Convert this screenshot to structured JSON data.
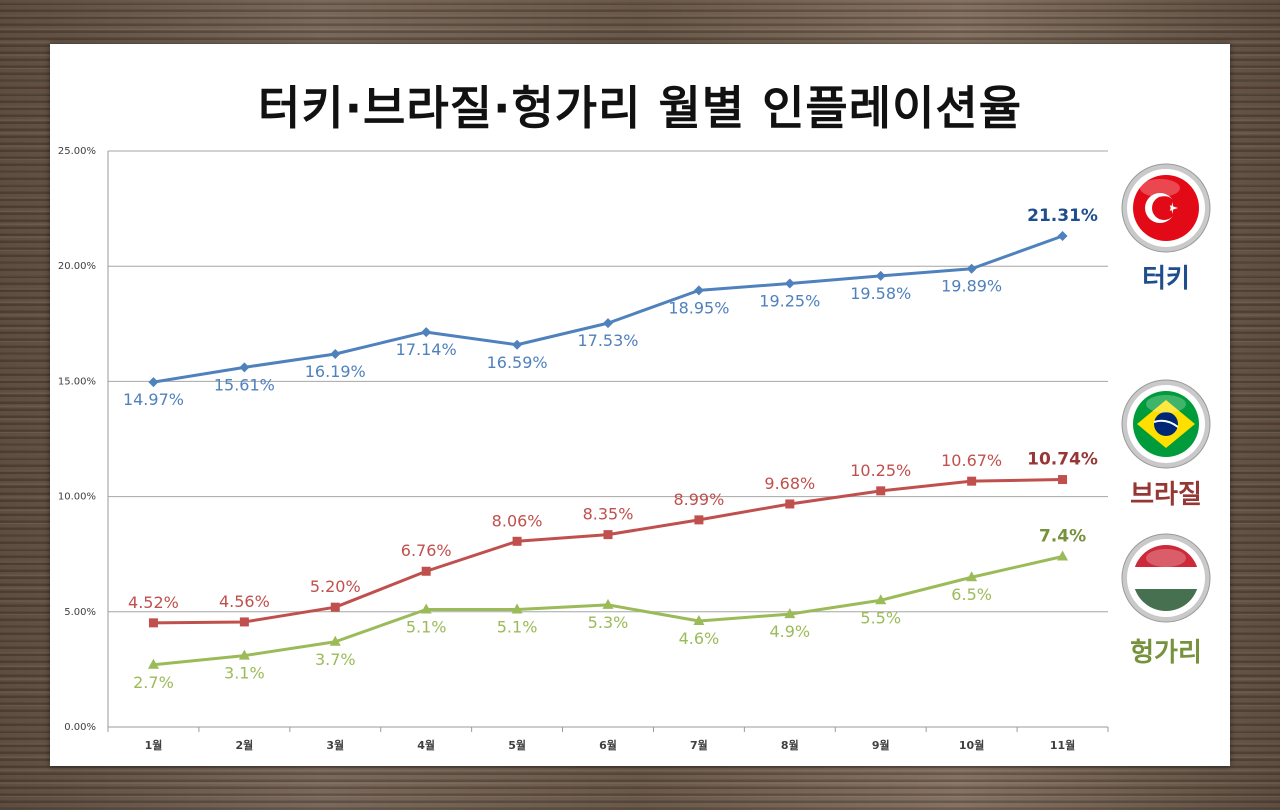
{
  "chart_data": {
    "type": "line",
    "title": "터키·브라질·헝가리 월별 인플레이션율",
    "xlabel": "",
    "ylabel": "",
    "categories": [
      "1월",
      "2월",
      "3월",
      "4월",
      "5월",
      "6월",
      "7월",
      "8월",
      "9월",
      "10월",
      "11월"
    ],
    "ylim": [
      0,
      25
    ],
    "yticks": [
      0,
      5,
      10,
      15,
      20,
      25
    ],
    "ytick_labels": [
      "0.00%",
      "5.00%",
      "10.00%",
      "15.00%",
      "20.00%",
      "25.00%"
    ],
    "grid": "horizontal",
    "legend": "right, country names with flag icons",
    "series": [
      {
        "name": "터키",
        "color": "#4f81bd",
        "label_color": "#4f81bd",
        "last_label_color": "#1f4e8c",
        "marker": "diamond",
        "flag": "turkey-flag-icon",
        "values": [
          14.97,
          15.61,
          16.19,
          17.14,
          16.59,
          17.53,
          18.95,
          19.25,
          19.58,
          19.89,
          21.31
        ],
        "labels": [
          "14.97%",
          "15.61%",
          "16.19%",
          "17.14%",
          "16.59%",
          "17.53%",
          "18.95%",
          "19.25%",
          "19.58%",
          "19.89%",
          "21.31%"
        ]
      },
      {
        "name": "브라질",
        "color": "#c0504d",
        "label_color": "#c0504d",
        "last_label_color": "#953735",
        "marker": "square",
        "flag": "brazil-flag-icon",
        "values": [
          4.52,
          4.56,
          5.2,
          6.76,
          8.06,
          8.35,
          8.99,
          9.68,
          10.25,
          10.67,
          10.74
        ],
        "labels": [
          "4.52%",
          "4.56%",
          "5.20%",
          "6.76%",
          "8.06%",
          "8.35%",
          "8.99%",
          "9.68%",
          "10.25%",
          "10.67%",
          "10.74%"
        ]
      },
      {
        "name": "헝가리",
        "color": "#9bbb59",
        "label_color": "#9bbb59",
        "last_label_color": "#76923c",
        "marker": "triangle",
        "flag": "hungary-flag-icon",
        "values": [
          2.7,
          3.1,
          3.7,
          5.1,
          5.1,
          5.3,
          4.6,
          4.9,
          5.5,
          6.5,
          7.4
        ],
        "labels": [
          "2.7%",
          "3.1%",
          "3.7%",
          "5.1%",
          "5.1%",
          "5.3%",
          "4.6%",
          "4.9%",
          "5.5%",
          "6.5%",
          "7.4%"
        ]
      }
    ]
  }
}
